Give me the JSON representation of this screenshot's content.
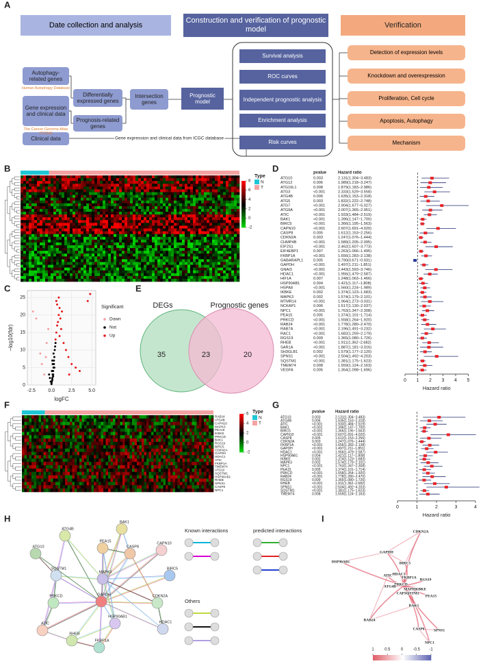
{
  "panel_labels": [
    "A",
    "B",
    "C",
    "D",
    "E",
    "F",
    "G",
    "H",
    "I"
  ],
  "flowchart": {
    "headers": [
      "Date collection and analysis",
      "Construction and verification of prognostic model",
      "Verification"
    ],
    "inputs": [
      "Autophagy-related genes",
      "Gene expression and clinical data",
      "Clinical data"
    ],
    "sources": [
      "Human Autophagy Database",
      "The Cancer Genome Atlas (TCGA)"
    ],
    "filters": [
      "Differentially expressed genes",
      "Prognosis-related genes"
    ],
    "intersection": "Intersection genes",
    "model": "Prognostic model",
    "analyses": [
      "Survival analysis",
      "ROC curves",
      "Independent prognostic analysis",
      "Enrichment analysis",
      "Risk curves"
    ],
    "verifications": [
      "Detection of expression levels",
      "Knockdown and overexpression",
      "Proliferation, Cell cycle",
      "Apoptosis, Autophagy",
      "Mechanism"
    ],
    "icgc_note": "Gene expression and clinical data from ICGC database"
  },
  "heatmap_b": {
    "legend_title": "Type",
    "groups": [
      "N",
      "T"
    ],
    "group_colors": [
      "#1fc6d6",
      "#f4a3a3"
    ],
    "colorbar_ticks": [
      8,
      6,
      4,
      2,
      0,
      -2
    ],
    "colors": [
      "#00e000",
      "#000000",
      "#ff0000"
    ]
  },
  "volcano": {
    "type": "scatter",
    "xlabel": "logFC",
    "ylabel": "−log10(fdr)",
    "legend_title": "Significant",
    "xlim": [
      -3,
      5.5
    ],
    "ylim": [
      0,
      27
    ],
    "xticks": [
      -2.5,
      {
        "value": 0,
        "label": "0.0"
      },
      2.5,
      {
        "value": 5,
        "label": "5.0"
      }
    ],
    "yticks": [
      0,
      5,
      10,
      15,
      20,
      25
    ],
    "series": [
      {
        "name": "Down",
        "color": "#f2a0a0",
        "x": [
          -2.3,
          -1.9,
          -1.4,
          -1.2,
          -0.9,
          -0.7,
          -0.6,
          -0.4
        ],
        "y": [
          21,
          19,
          9,
          6,
          3,
          8,
          12,
          16
        ]
      },
      {
        "name": "Not",
        "color": "#000000",
        "x": [
          0,
          0.05,
          0.1,
          0.15,
          0.2,
          0.25,
          0.3,
          0.3,
          0.35,
          0.4,
          0.1,
          0.2,
          -0.1,
          -0.2,
          -0.3,
          0,
          0.05,
          0.15,
          0.25,
          0.45,
          0.5,
          0.35,
          0.1,
          0.2
        ],
        "y": [
          0.5,
          1,
          2,
          3,
          4,
          5,
          6,
          7,
          8,
          10,
          1.5,
          2.5,
          1,
          2,
          3,
          0.3,
          4,
          6,
          9,
          11,
          12,
          5,
          7,
          3
        ]
      },
      {
        "name": "Up",
        "color": "#e41a1c",
        "x": [
          0.5,
          0.6,
          0.7,
          0.8,
          0.9,
          1.0,
          1.1,
          1.2,
          1.5,
          1.8,
          2.1,
          2.5,
          3.0,
          3.5,
          4.5,
          4.8,
          0.6,
          0.9,
          1.3,
          0.7,
          1.0,
          2.2
        ],
        "y": [
          13,
          15,
          17,
          18,
          20,
          22,
          19,
          16,
          12,
          10,
          8,
          6,
          5,
          4,
          24,
          26,
          24,
          25,
          21,
          23,
          14,
          3
        ]
      }
    ]
  },
  "venn": {
    "type": "venn",
    "sets": [
      "DEGs",
      "Prognostic genes"
    ],
    "values": [
      35,
      23,
      20
    ],
    "colors": [
      "#bfe3c9",
      "#f4b9d3"
    ]
  },
  "forest_d": {
    "type": "forest",
    "col_headers": [
      "pvalue",
      "Hazard ratio"
    ],
    "xlabel": "Hazard ratio",
    "xlim": [
      0,
      5
    ],
    "xticks": [
      0,
      1,
      2,
      3,
      4,
      5
    ],
    "reference": 1,
    "point_color": "#e8262b",
    "protective_color": "#2b3a9b",
    "line_color": "#1b2a6b",
    "genes": [
      "ATG10",
      "ATG12",
      "ATG16L1",
      "ATG3",
      "ATG4B",
      "ATG5",
      "ATG7",
      "ATG9A",
      "ATIC",
      "BAK1",
      "BIRC5",
      "CAPN10",
      "CASP8",
      "CDKN2A",
      "CHMP4B",
      "EIF2S1",
      "EIF4EBP1",
      "FKBP1A",
      "GABARAPL1",
      "GAPDH",
      "GNAI3",
      "HDAC1",
      "HIF1A",
      "HSP90AB1",
      "HSPA8",
      "IKBKE",
      "MAPK3",
      "MTMR14",
      "NCKAP1",
      "NPC1",
      "PEA15",
      "PRKCD",
      "RAB24",
      "RAB7A",
      "RAC1",
      "RGS19",
      "RHEB",
      "SAR1A",
      "SH3GLB1",
      "SPNS1",
      "SQSTM1",
      "TMEM74",
      "VEGFA"
    ],
    "pvalues": [
      "0.003",
      "0.006",
      "0.008",
      "<0.001",
      "0.006",
      "0.003",
      "<0.001",
      "<0.001",
      "<0.001",
      "<0.001",
      "<0.001",
      "<0.001",
      "0.005",
      "0.003",
      "<0.001",
      "<0.001",
      "0.007",
      "<0.001",
      "0.005",
      "<0.001",
      "<0.001",
      "<0.001",
      "0.007",
      "0.004",
      "<0.001",
      "0.002",
      "0.002",
      "<0.001",
      "0.006",
      "<0.001",
      "0.005",
      "<0.001",
      "<0.001",
      "<0.001",
      "<0.001",
      "0.009",
      "<0.001",
      "<0.001",
      "0.002",
      "<0.001",
      "<0.001",
      "0.008",
      "0.005"
    ],
    "values": [
      2.131,
      1.989,
      1.879,
      2.333,
      1.635,
      1.832,
      2.904,
      2.007,
      1.933,
      1.396,
      1.366,
      2.607,
      1.612,
      1.247,
      1.589,
      2.462,
      1.263,
      1.656,
      0.79,
      1.497,
      2.443,
      1.956,
      1.248,
      1.421,
      1.56,
      1.374,
      1.574,
      1.964,
      1.517,
      1.763,
      1.374,
      1.558,
      1.778,
      2.196,
      1.682,
      1.365,
      1.911,
      1.887,
      1.579,
      2.504,
      1.381,
      1.559,
      1.364
    ],
    "lower": [
      1.304,
      1.218,
      1.183,
      1.529,
      1.153,
      1.222,
      1.677,
      1.365,
      1.484,
      1.147,
      1.195,
      1.691,
      1.153,
      1.076,
      1.205,
      1.607,
      1.066,
      1.283,
      0.671,
      1.211,
      1.593,
      1.479,
      1.063,
      1.117,
      1.224,
      1.123,
      1.179,
      1.273,
      1.13,
      1.347,
      1.101,
      1.264,
      1.28,
      1.491,
      1.259,
      1.08,
      1.362,
      1.181,
      1.177,
      1.492,
      1.175,
      1.124,
      1.098
    ],
    "upper": [
      3.483,
      3.247,
      2.986,
      3.558,
      2.318,
      2.748,
      5.027,
      2.951,
      2.519,
      1.7,
      1.563,
      4.02,
      2.256,
      1.444,
      2.095,
      3.773,
      1.495,
      2.138,
      0.931,
      1.851,
      3.746,
      2.587,
      1.466,
      1.808,
      1.989,
      1.683,
      2.101,
      3.031,
      2.037,
      2.308,
      1.714,
      1.92,
      2.47,
      3.232,
      2.179,
      1.726,
      2.682,
      3.016,
      2.12,
      4.203,
      1.623,
      2.163,
      1.696
    ],
    "value_labels": [
      "2.131(1.304−3.483)",
      "1.989(1.218−3.247)",
      "1.879(1.183−2.986)",
      "2.333(1.529−3.558)",
      "1.635(1.153−2.318)",
      "1.832(1.222−2.748)",
      "2.904(1.677−5.027)",
      "2.007(1.365−2.951)",
      "1.933(1.484−2.519)",
      "1.396(1.147−1.700)",
      "1.366(1.195−1.563)",
      "2.607(1.691−4.020)",
      "1.612(1.153−2.256)",
      "1.247(1.076−1.444)",
      "1.589(1.205−2.095)",
      "2.462(1.607−3.773)",
      "1.263(1.066−1.495)",
      "1.656(1.283−2.138)",
      "0.790(0.671−0.931)",
      "1.497(1.211−1.851)",
      "2.443(1.593−3.746)",
      "1.956(1.479−2.587)",
      "1.248(1.063−1.466)",
      "1.421(1.117−1.808)",
      "1.560(1.224−1.989)",
      "1.374(1.123−1.683)",
      "1.574(1.179−2.101)",
      "1.964(1.273−3.031)",
      "1.517(1.130−2.037)",
      "1.763(1.347−2.308)",
      "1.374(1.101−1.714)",
      "1.558(1.264−1.920)",
      "1.778(1.280−2.470)",
      "2.196(1.491−3.232)",
      "1.682(1.259−2.179)",
      "1.365(1.080−1.726)",
      "1.911(1.362−2.682)",
      "1.887(1.181−3.016)",
      "1.579(1.177−2.120)",
      "2.504(1.492−4.203)",
      "1.381(1.175−1.623)",
      "1.559(1.124−2.163)",
      "1.364(1.098−1.696)"
    ]
  },
  "heatmap_f": {
    "legend_title": "Type",
    "groups": [
      "N",
      "T"
    ],
    "group_colors": [
      "#1fc6d6",
      "#f4a3a3"
    ],
    "colorbar_ticks": [
      6,
      4,
      2,
      0,
      -2
    ],
    "colors": [
      "#00e000",
      "#000000",
      "#ff0000"
    ],
    "genes": [
      "RAB24",
      "ATG4B",
      "CAPN10",
      "MAPK3",
      "PEA15",
      "IKBKE",
      "PRKCD",
      "BAK1",
      "RGS19",
      "BIRC5",
      "CDKN2A",
      "GAPDH",
      "HDAC1",
      "ATIC",
      "FKBP1A",
      "TMEM74",
      "ATG10",
      "SQSTM1",
      "HSP90AB1",
      "RHEB",
      "SPNS1",
      "CASP8",
      "NPC1"
    ]
  },
  "forest_g": {
    "type": "forest",
    "col_headers": [
      "pvalue",
      "Hazard ratio"
    ],
    "xlabel": "Hazard ratio",
    "xlim": [
      0,
      4
    ],
    "xticks": [
      0,
      1,
      2,
      3,
      4
    ],
    "reference": 1,
    "point_color": "#e8262b",
    "protective_color": "#2b3a9b",
    "line_color": "#1b2a6b",
    "genes": [
      "ATG10",
      "ATG4B",
      "ATIC",
      "BAK1",
      "BIRC5",
      "CAPN10",
      "CASP8",
      "CDKN2A",
      "FKBP1A",
      "GAPDH",
      "HDAC1",
      "HSP90AB1",
      "IKBKE",
      "MAPK3",
      "NPC1",
      "PEA15",
      "PRKCD",
      "RAB24",
      "RGS19",
      "RHEB",
      "SPNS1",
      "SQSTM1",
      "TMEM74"
    ],
    "pvalues": [
      "0.003",
      "0.006",
      "<0.001",
      "<0.001",
      "<0.001",
      "<0.001",
      "0.005",
      "0.003",
      "<0.001",
      "<0.001",
      "<0.001",
      "0.004",
      "0.002",
      "0.002",
      "<0.001",
      "0.005",
      "<0.001",
      "<0.001",
      "0.009",
      "<0.001",
      "<0.001",
      "<0.001",
      "0.008"
    ],
    "values": [
      2.131,
      1.635,
      1.933,
      1.396,
      1.366,
      2.607,
      1.612,
      1.247,
      1.656,
      1.497,
      1.956,
      1.421,
      1.374,
      1.574,
      1.763,
      1.374,
      1.558,
      1.778,
      1.365,
      1.911,
      2.504,
      1.381,
      1.559
    ],
    "lower": [
      1.304,
      1.153,
      1.484,
      1.147,
      1.195,
      1.691,
      1.153,
      1.076,
      1.283,
      1.211,
      1.479,
      1.117,
      1.123,
      1.179,
      1.347,
      1.101,
      1.264,
      1.28,
      1.08,
      1.362,
      1.492,
      1.175,
      1.124
    ],
    "upper": [
      3.483,
      2.318,
      2.519,
      1.7,
      1.563,
      4.02,
      2.256,
      1.444,
      2.138,
      1.851,
      2.587,
      1.808,
      1.683,
      2.101,
      2.308,
      1.714,
      1.92,
      2.47,
      1.726,
      2.682,
      4.203,
      1.623,
      2.163
    ],
    "value_labels": [
      "2.131(1.304−3.483)",
      "1.635(1.153−2.318)",
      "1.933(1.484−2.519)",
      "1.396(1.147−1.700)",
      "1.366(1.195−1.563)",
      "2.607(1.691−4.020)",
      "1.612(1.153−2.256)",
      "1.247(1.076−1.444)",
      "1.656(1.283−2.138)",
      "1.497(1.211−1.851)",
      "1.956(1.479−2.587)",
      "1.421(1.117−1.808)",
      "1.374(1.123−1.683)",
      "1.574(1.179−2.101)",
      "1.763(1.347−2.308)",
      "1.374(1.101−1.714)",
      "1.558(1.264−1.920)",
      "1.778(1.280−2.470)",
      "1.365(1.080−1.726)",
      "1.911(1.362−2.682)",
      "2.504(1.492−4.203)",
      "1.381(1.175−1.623)",
      "1.559(1.124−2.163)"
    ]
  },
  "network_h": {
    "nodes": [
      "ATG4B",
      "BAK1",
      "ATG10",
      "PEA15",
      "CASP8",
      "CAPN10",
      "SQSTM1",
      "BIRC5",
      "MAPK3",
      "PRKCD",
      "GAPDH",
      "CDKN2A",
      "HSP90AB1",
      "HDAC1",
      "ATIC",
      "RHEB",
      "FKBP1A"
    ],
    "legend": [
      "Known interactions",
      "predicted interactions",
      "Others"
    ]
  },
  "network_i": {
    "nodes": [
      "CDKN2A",
      "GAPDH",
      "HSP90AB1",
      "BIRC5",
      "ATIC",
      "HDAC1",
      "FKBP1A",
      "RGS19",
      "PRKCD",
      "MAPK3",
      "ATG4B",
      "CAPN10",
      "SQSTM1",
      "IKBKE",
      "PEA15",
      "BAK1",
      "RAB24",
      "CASP8",
      "SPNS1",
      "NPC1"
    ],
    "colorbar_ticks": [
      1,
      0.5,
      0,
      -0.5,
      -1
    ]
  }
}
